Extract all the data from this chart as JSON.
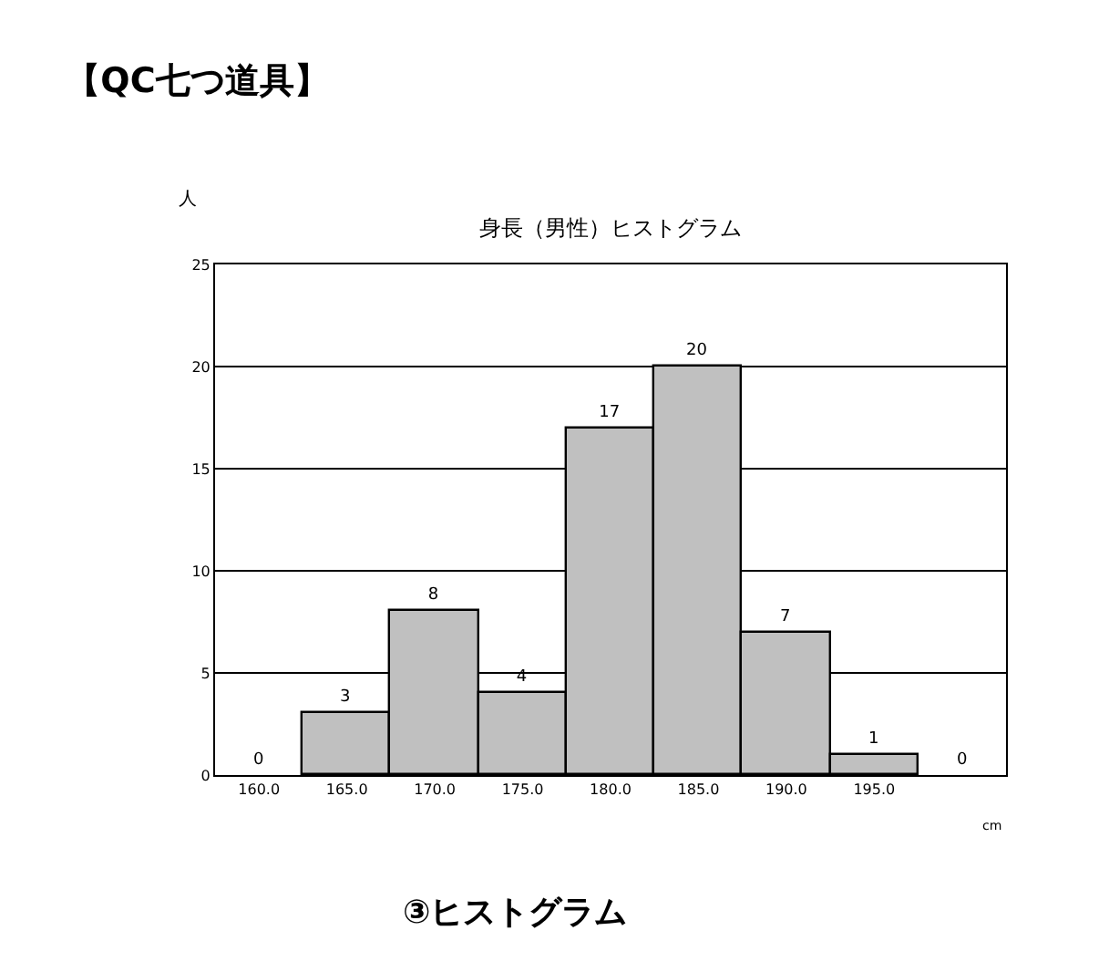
{
  "chart_data": {
    "type": "bar",
    "title": "【QC七つ道具】",
    "subtitle": "身長（男性）ヒストグラム",
    "xlabel": "cm",
    "ylabel": "人",
    "annotations": [
      "③ヒストグラム"
    ],
    "categories": [
      "160.0",
      "165.0",
      "170.0",
      "175.0",
      "180.0",
      "185.0",
      "190.0",
      "195.0",
      null
    ],
    "values": [
      0,
      3,
      8,
      4,
      17,
      20,
      7,
      1,
      0
    ],
    "color": "#c0c0c0",
    "ylim": [
      0,
      25
    ],
    "yticks": [
      0,
      5,
      10,
      15,
      20,
      25
    ],
    "grid": "y",
    "data_labels": true,
    "legend": false
  }
}
